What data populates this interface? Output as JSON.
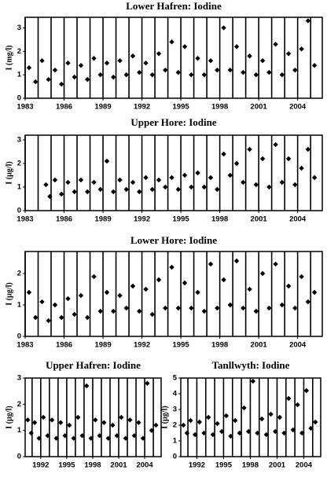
{
  "chart_data": [
    {
      "type": "scatter",
      "title": "Lower Hafren: Iodine",
      "y_label": "I (mg/l)",
      "color": "#000000",
      "marker": "diamond",
      "xgrid_interval": 1,
      "xlim": [
        1983,
        2005.9
      ],
      "xticks": [
        1983,
        1986,
        1989,
        1992,
        1995,
        1998,
        2001,
        2004
      ],
      "ylim": [
        0,
        3.45
      ],
      "yticks": [
        0,
        1,
        2,
        3
      ],
      "x": [
        1983.3,
        1983.8,
        1984.3,
        1984.8,
        1985.3,
        1985.8,
        1986.3,
        1986.8,
        1987.3,
        1987.8,
        1988.3,
        1988.8,
        1989.3,
        1989.8,
        1990.3,
        1990.8,
        1991.3,
        1991.8,
        1992.3,
        1992.8,
        1993.3,
        1993.8,
        1994.3,
        1994.8,
        1995.3,
        1995.8,
        1996.3,
        1996.8,
        1997.3,
        1997.8,
        1998.3,
        1998.8,
        1999.3,
        1999.8,
        2000.3,
        2000.8,
        2001.3,
        2001.8,
        2002.3,
        2002.8,
        2003.3,
        2003.8,
        2004.3,
        2004.8,
        2005.3
      ],
      "values": [
        1.3,
        0.7,
        1.6,
        0.8,
        1.2,
        0.6,
        1.5,
        0.9,
        1.4,
        0.8,
        1.7,
        1.0,
        1.5,
        0.9,
        1.6,
        1.0,
        1.8,
        1.1,
        1.5,
        1.0,
        1.9,
        1.2,
        2.4,
        1.1,
        2.2,
        1.0,
        1.7,
        1.0,
        1.6,
        1.2,
        3.0,
        1.2,
        2.2,
        1.1,
        1.8,
        1.0,
        1.6,
        1.1,
        2.3,
        1.0,
        1.9,
        1.2,
        2.1,
        3.3,
        1.4
      ]
    },
    {
      "type": "scatter",
      "title": "Upper Hore: Iodine",
      "y_label": "I (µg/l)",
      "color": "#000000",
      "marker": "diamond",
      "xgrid_interval": 1,
      "xlim": [
        1983,
        2005.9
      ],
      "xticks": [
        1983,
        1986,
        1989,
        1992,
        1995,
        1998,
        2001,
        2004
      ],
      "ylim": [
        0,
        3.2
      ],
      "yticks": [
        0,
        1,
        2,
        3
      ],
      "x": [
        1984.6,
        1984.9,
        1985.3,
        1985.8,
        1986.3,
        1986.8,
        1987.3,
        1987.8,
        1988.3,
        1988.8,
        1989.3,
        1989.8,
        1990.3,
        1990.8,
        1991.3,
        1991.8,
        1992.3,
        1992.8,
        1993.3,
        1993.8,
        1994.3,
        1994.8,
        1995.3,
        1995.8,
        1996.3,
        1996.8,
        1997.3,
        1997.8,
        1998.3,
        1998.8,
        1999.3,
        1999.8,
        2000.3,
        2000.8,
        2001.3,
        2001.8,
        2002.3,
        2002.8,
        2003.3,
        2003.8,
        2004.3,
        2004.8,
        2005.3
      ],
      "values": [
        1.1,
        0.6,
        1.3,
        0.7,
        1.2,
        0.8,
        1.3,
        0.8,
        1.2,
        0.9,
        2.1,
        0.8,
        1.3,
        0.9,
        1.2,
        0.8,
        1.4,
        0.9,
        1.3,
        1.0,
        1.4,
        0.9,
        1.5,
        1.0,
        1.6,
        1.0,
        1.4,
        0.9,
        2.4,
        1.5,
        2.0,
        1.2,
        2.6,
        1.1,
        2.2,
        1.0,
        2.8,
        1.2,
        2.2,
        1.1,
        1.8,
        2.6,
        1.4
      ]
    },
    {
      "type": "scatter",
      "title": "Lower Hore: Iodine",
      "y_label": "I (µg/l)",
      "color": "#000000",
      "marker": "diamond",
      "xgrid_interval": 1,
      "xlim": [
        1983,
        2005.9
      ],
      "xticks": [
        1983,
        1986,
        1989,
        1992,
        1995,
        1998,
        2001,
        2004
      ],
      "ylim": [
        0,
        2.7
      ],
      "yticks": [
        0,
        1,
        2
      ],
      "x": [
        1983.3,
        1983.8,
        1984.3,
        1984.8,
        1985.3,
        1985.8,
        1986.3,
        1986.8,
        1987.3,
        1987.8,
        1988.3,
        1988.8,
        1989.3,
        1989.8,
        1990.3,
        1990.8,
        1991.3,
        1991.8,
        1992.3,
        1992.8,
        1993.3,
        1993.8,
        1994.3,
        1994.8,
        1995.3,
        1995.8,
        1996.3,
        1996.8,
        1997.3,
        1997.8,
        1998.3,
        1998.8,
        1999.3,
        1999.8,
        2000.3,
        2000.8,
        2001.3,
        2001.8,
        2002.3,
        2002.8,
        2003.3,
        2003.8,
        2004.3,
        2004.8,
        2005.3
      ],
      "values": [
        1.4,
        0.6,
        1.1,
        0.5,
        1.0,
        0.6,
        1.2,
        0.7,
        1.3,
        0.6,
        1.9,
        0.8,
        1.4,
        0.8,
        1.3,
        0.9,
        1.6,
        0.8,
        1.5,
        0.7,
        1.8,
        0.9,
        2.2,
        0.9,
        1.7,
        0.9,
        1.4,
        0.8,
        2.3,
        0.9,
        1.8,
        1.0,
        2.4,
        0.9,
        1.5,
        0.8,
        2.0,
        0.9,
        2.3,
        1.0,
        1.6,
        0.9,
        1.9,
        1.1,
        1.4
      ]
    },
    {
      "type": "scatter",
      "title": "Upper Hafren: Iodine",
      "y_label": "I (µg/l)",
      "color": "#000000",
      "marker": "diamond",
      "xgrid_interval": 1,
      "xlim": [
        1990.2,
        2005.9
      ],
      "xticks": [
        1992,
        1995,
        1998,
        2001,
        2004
      ],
      "ylim": [
        0,
        3
      ],
      "yticks": [
        0,
        1,
        2,
        3
      ],
      "x": [
        1990.5,
        1990.9,
        1991.3,
        1991.8,
        1992.3,
        1992.8,
        1993.3,
        1993.8,
        1994.3,
        1994.8,
        1995.3,
        1995.8,
        1996.3,
        1996.8,
        1997.3,
        1997.8,
        1998.3,
        1998.8,
        1999.3,
        1999.8,
        2000.3,
        2000.8,
        2001.3,
        2001.8,
        2002.3,
        2002.8,
        2003.3,
        2003.8,
        2004.3,
        2004.8,
        2005.3
      ],
      "values": [
        1.4,
        0.9,
        1.3,
        0.7,
        1.5,
        0.8,
        1.4,
        0.7,
        1.3,
        0.8,
        1.2,
        0.7,
        1.5,
        0.8,
        2.7,
        0.7,
        1.4,
        0.8,
        1.3,
        0.7,
        1.2,
        0.8,
        1.5,
        0.7,
        1.4,
        0.8,
        1.3,
        0.7,
        2.8,
        1.0,
        1.2
      ]
    },
    {
      "type": "scatter",
      "title": "Tanllwyth: Iodine",
      "y_label": "I (µg/l)",
      "color": "#000000",
      "marker": "diamond",
      "xgrid_interval": 1,
      "xlim": [
        1990.2,
        2005.9
      ],
      "xticks": [
        1992,
        1995,
        1998,
        2001,
        2004
      ],
      "ylim": [
        0,
        5
      ],
      "yticks": [
        0,
        1,
        2,
        3,
        4,
        5
      ],
      "x": [
        1990.5,
        1990.9,
        1991.3,
        1991.8,
        1992.3,
        1992.8,
        1993.3,
        1993.8,
        1994.3,
        1994.8,
        1995.3,
        1995.8,
        1996.3,
        1996.8,
        1997.3,
        1997.8,
        1998.3,
        1998.8,
        1999.3,
        1999.8,
        2000.3,
        2000.8,
        2001.3,
        2001.8,
        2002.3,
        2002.8,
        2003.3,
        2003.8,
        2004.3,
        2004.8,
        2005.3
      ],
      "values": [
        2.0,
        1.5,
        2.3,
        1.4,
        2.2,
        1.5,
        2.5,
        1.4,
        2.1,
        1.6,
        2.6,
        1.3,
        2.3,
        1.5,
        3.1,
        1.6,
        4.8,
        1.5,
        2.4,
        1.4,
        2.7,
        1.6,
        2.5,
        1.5,
        3.7,
        1.7,
        3.3,
        1.5,
        4.2,
        1.8,
        2.2
      ]
    }
  ]
}
